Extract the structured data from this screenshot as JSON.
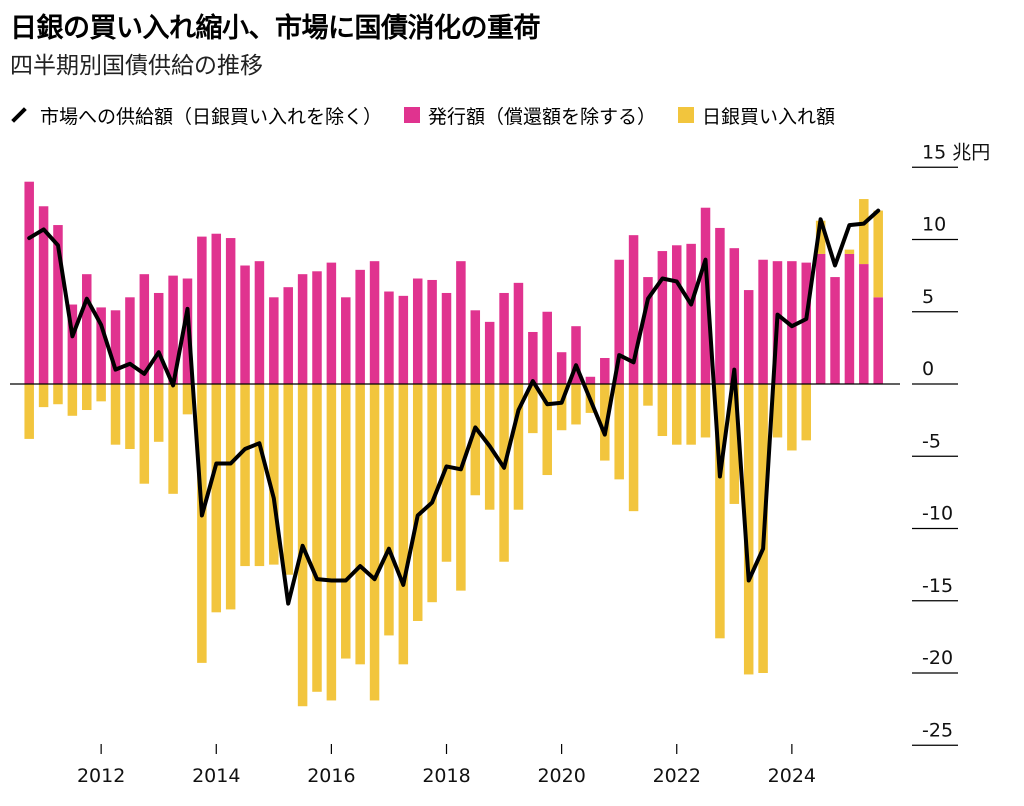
{
  "header": {
    "title": "日銀の買い入れ縮小、市場に国債消化の重荷",
    "subtitle": "四半期別国債供給の推移"
  },
  "colors": {
    "issuance": "#e0338f",
    "boj": "#f2c53d",
    "line": "#000000",
    "grid": "#000000"
  },
  "chart_data": {
    "type": "bar",
    "unit": "兆円",
    "legend": [
      {
        "key": "market",
        "name": "市場への供給額（日銀買い入れを除く）",
        "symbol": "line",
        "color": "#000000"
      },
      {
        "key": "issuance",
        "name": "発行額（償還額を除する）",
        "symbol": "bar",
        "color": "#e0338f"
      },
      {
        "key": "boj",
        "name": "日銀買い入れ額",
        "symbol": "bar",
        "color": "#f2c53d"
      }
    ],
    "legend_position": "top-left",
    "grid": "horizontal",
    "ylim": [
      -25,
      15
    ],
    "yticks": [
      15,
      10,
      5,
      0,
      -5,
      -10,
      -15,
      -20,
      -25
    ],
    "ytick_labels": [
      "15 兆円",
      "10",
      "5",
      "0",
      "-5",
      "-10",
      "-15",
      "-20",
      "-25"
    ],
    "xticks": [
      {
        "label": "2012",
        "index": 5.5
      },
      {
        "label": "2014",
        "index": 13.5
      },
      {
        "label": "2016",
        "index": 21.5
      },
      {
        "label": "2018",
        "index": 29.5
      },
      {
        "label": "2020",
        "index": 37.5
      },
      {
        "label": "2022",
        "index": 45.5
      },
      {
        "label": "2024",
        "index": 53.5
      }
    ],
    "series": [
      {
        "name": "発行額（償還額を除する）",
        "values": [
          14.0,
          12.3,
          11.0,
          5.5,
          7.6,
          5.3,
          5.1,
          6.0,
          7.6,
          6.3,
          7.5,
          7.3,
          10.2,
          10.4,
          10.1,
          8.2,
          8.5,
          6.0,
          6.7,
          7.6,
          7.8,
          8.4,
          6.0,
          7.9,
          8.5,
          6.4,
          6.1,
          7.3,
          7.2,
          6.3,
          8.5,
          5.1,
          4.3,
          6.3,
          7.0,
          3.6,
          5.0,
          2.2,
          4.0,
          0.5,
          1.8,
          8.6,
          10.3,
          7.4,
          9.2,
          9.6,
          9.7,
          12.2,
          10.8,
          9.4,
          6.5,
          8.6,
          8.5,
          8.5,
          8.4,
          9.0,
          7.4,
          9.0,
          8.3,
          6.0
        ],
        "color": "#e0338f"
      },
      {
        "name": "日銀買い入れ額",
        "values": [
          -3.8,
          -1.6,
          -1.4,
          -2.2,
          -1.8,
          -1.2,
          -4.2,
          -4.5,
          -6.9,
          -4.0,
          -7.6,
          -2.1,
          -19.3,
          -15.8,
          -15.6,
          -12.6,
          -12.6,
          -12.5,
          -13.2,
          -22.3,
          -21.3,
          -21.9,
          -19.0,
          -19.4,
          -21.9,
          -17.4,
          -19.4,
          -16.4,
          -15.1,
          -12.3,
          -14.3,
          -7.7,
          -8.7,
          -12.3,
          -8.7,
          -3.4,
          -6.3,
          -3.2,
          -2.8,
          -2.0,
          -5.3,
          -6.6,
          -8.8,
          -1.5,
          -3.6,
          -4.2,
          -4.2,
          -3.7,
          -17.6,
          -8.3,
          -20.1,
          -20.0,
          -3.7,
          -4.6,
          -3.9,
          2.3,
          0.0,
          0.3,
          4.5,
          6.0
        ],
        "color": "#f2c53d"
      },
      {
        "name": "市場への供給額（日銀買い入れを除く）",
        "symbol": "line",
        "values": [
          10.1,
          10.7,
          9.6,
          3.3,
          5.9,
          4.1,
          1.0,
          1.4,
          0.7,
          2.2,
          -0.1,
          5.2,
          -9.1,
          -5.5,
          -5.5,
          -4.5,
          -4.1,
          -7.9,
          -15.2,
          -11.2,
          -13.5,
          -13.6,
          -13.6,
          -12.6,
          -13.5,
          -11.4,
          -13.9,
          -9.1,
          -8.2,
          -5.7,
          -5.9,
          -3.0,
          -4.3,
          -5.8,
          -1.8,
          0.2,
          -1.4,
          -1.3,
          1.3,
          -1.1,
          -3.5,
          2.0,
          1.5,
          5.9,
          7.3,
          7.1,
          5.5,
          8.6,
          -6.4,
          1.0,
          -13.6,
          -11.4,
          4.8,
          4.0,
          4.5,
          11.4,
          8.2,
          11.0,
          11.1,
          12.0
        ],
        "color": "#000000"
      }
    ]
  }
}
